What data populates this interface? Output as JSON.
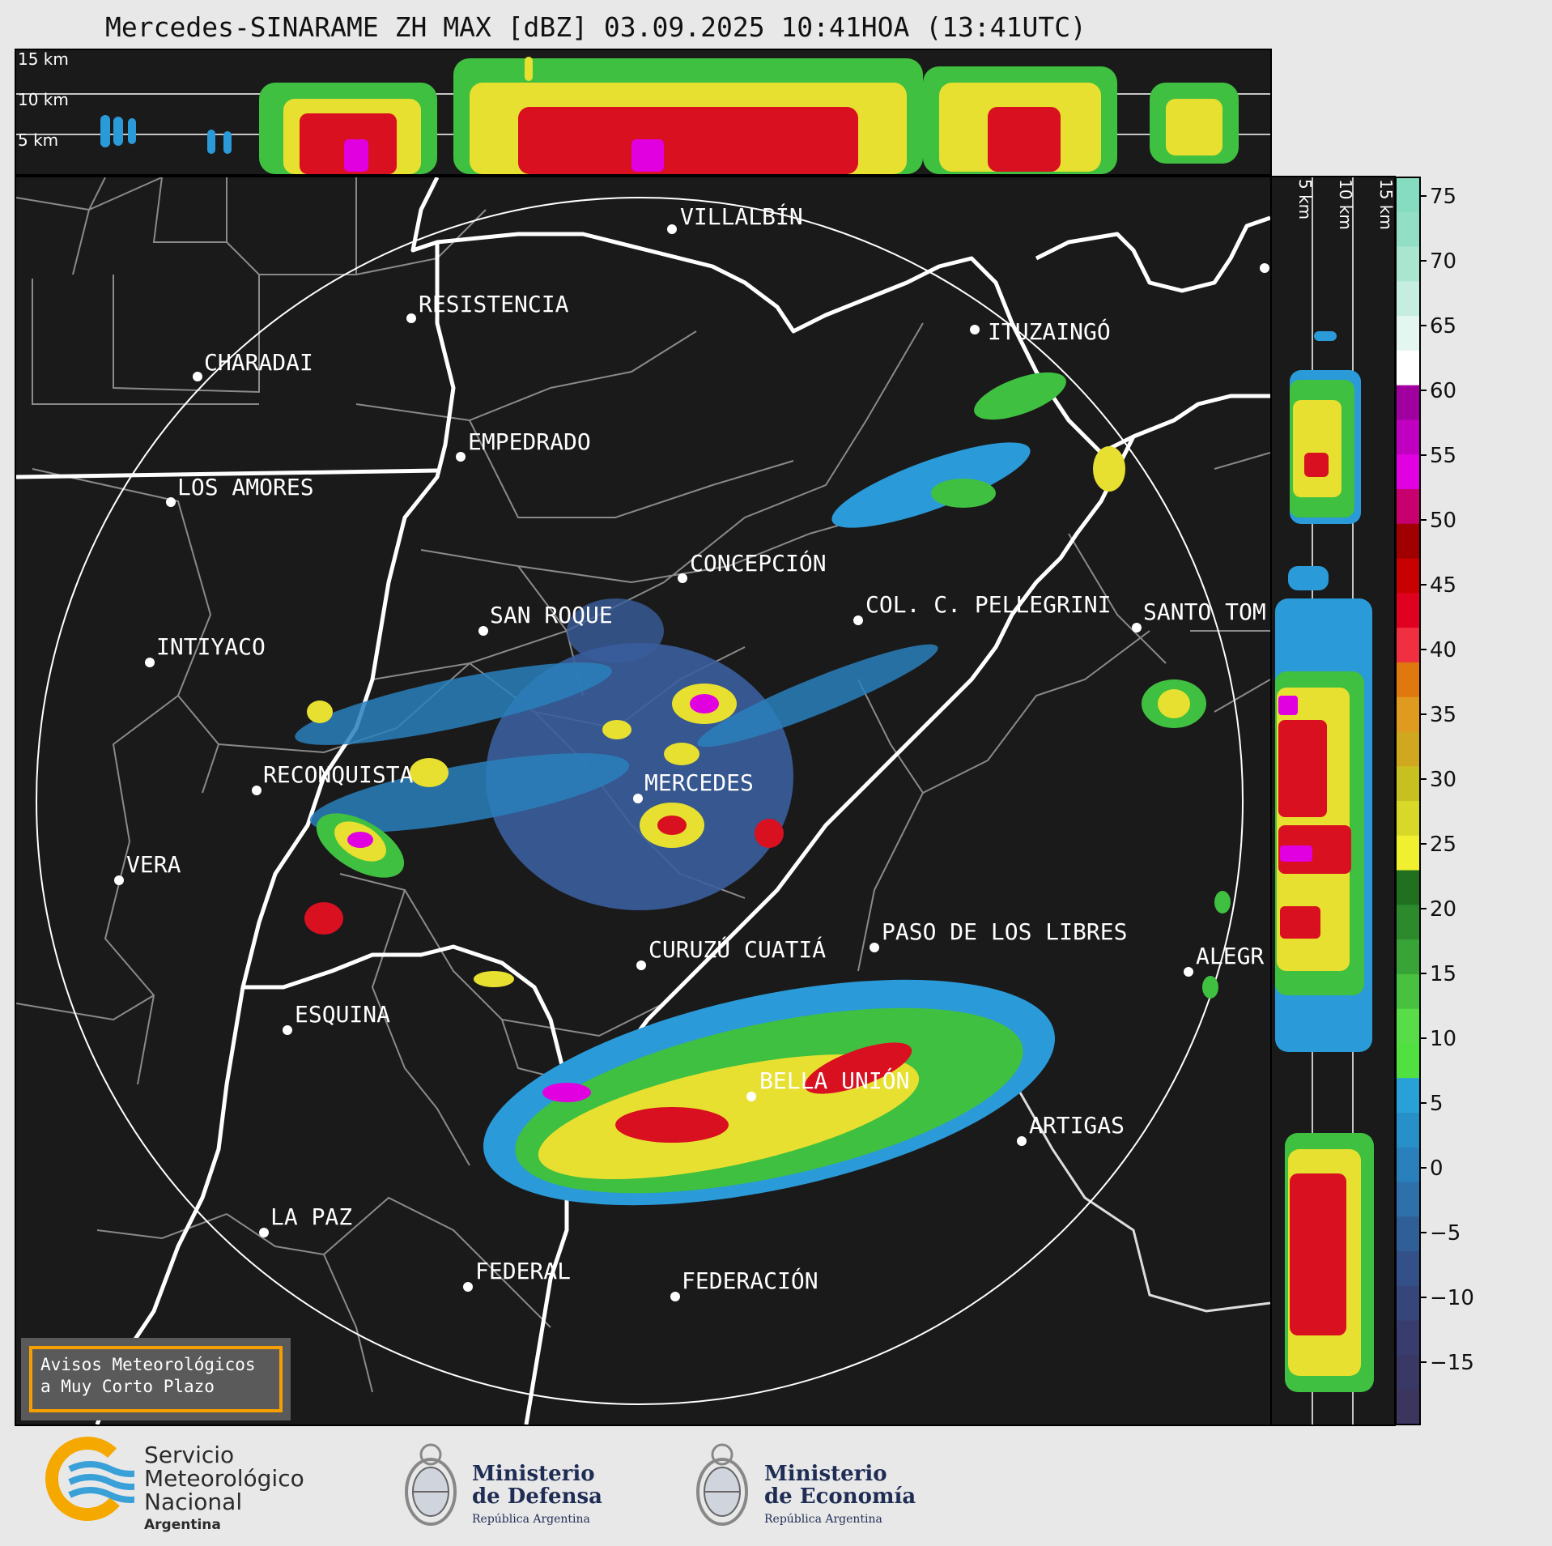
{
  "title": "Mercedes-SINARAME ZH MAX [dBZ] 03.09.2025 10:41HOA (13:41UTC)",
  "top_profile": {
    "km_labels": [
      "15 km",
      "10 km",
      "5 km"
    ]
  },
  "side_profile": {
    "km_labels": [
      "5 km",
      "10 km",
      "15 km"
    ]
  },
  "colorbar": {
    "ticks": [
      "75",
      "70",
      "65",
      "60",
      "55",
      "50",
      "45",
      "40",
      "35",
      "30",
      "25",
      "20",
      "15",
      "10",
      "5",
      "0",
      "−5",
      "−10",
      "−15"
    ],
    "colors": [
      "#86dcc0",
      "#92dfc5",
      "#a9e5cf",
      "#c5ede0",
      "#e3f6ef",
      "#ffffff",
      "#a000a0",
      "#c000c0",
      "#e000e0",
      "#c8006e",
      "#a00000",
      "#c80000",
      "#e00020",
      "#f03040",
      "#e07810",
      "#e09a20",
      "#d0a820",
      "#c8c020",
      "#d8d828",
      "#f0f030",
      "#207020",
      "#2c8a2c",
      "#38a438",
      "#48c040",
      "#58dc48",
      "#50e040",
      "#2aa0d8",
      "#2890c8",
      "#2a80bc",
      "#2e70aa",
      "#305f98",
      "#335088",
      "#36467a",
      "#383d6e",
      "#3a3864",
      "#3c355e"
    ]
  },
  "cities": [
    {
      "name": "VILLALBÍN"
    },
    {
      "name": "RESISTENCIA"
    },
    {
      "name": "CHARADAI"
    },
    {
      "name": "ITUZAINGÓ"
    },
    {
      "name": "EMPEDRADO"
    },
    {
      "name": "LOS AMORES"
    },
    {
      "name": "CONCEPCIÓN"
    },
    {
      "name": "SAN ROQUE"
    },
    {
      "name": "COL. C. PELLEGRINI"
    },
    {
      "name": "SANTO TOM"
    },
    {
      "name": "INTIYACO"
    },
    {
      "name": "RECONQUISTA"
    },
    {
      "name": "MERCEDES"
    },
    {
      "name": "VERA"
    },
    {
      "name": "PASO DE LOS LIBRES"
    },
    {
      "name": "CURUZÚ CUATIÁ"
    },
    {
      "name": "ALEGR"
    },
    {
      "name": "ESQUINA"
    },
    {
      "name": "BELLA UNIÓN"
    },
    {
      "name": "ARTIGAS"
    },
    {
      "name": "LA PAZ"
    },
    {
      "name": "FEDERAL"
    },
    {
      "name": "FEDERACIÓN"
    }
  ],
  "avisos": {
    "line1": "Avisos Meteorológicos",
    "line2": "a Muy Corto Plazo"
  },
  "footer": {
    "smn": {
      "line1": "Servicio",
      "line2": "Meteorológico",
      "line3": "Nacional",
      "line4": "Argentina"
    },
    "defensa": {
      "line1": "Ministerio",
      "line2": "de Defensa",
      "line3": "República Argentina"
    },
    "economia": {
      "line1": "Ministerio",
      "line2": "de Economía",
      "line3": "República Argentina"
    }
  },
  "colors": {
    "panel_bg": "#1a1a1a",
    "boundary": "#8a8a8a",
    "river": "#ffffff",
    "echo_low": "#3a5e9c",
    "echo_med": "#2a9ad8",
    "echo_green": "#40c040",
    "echo_yellow": "#e8e030",
    "echo_red": "#d81020",
    "echo_magenta": "#e000e0",
    "smn_orange": "#f5a800",
    "smn_blue": "#3aa0d8"
  }
}
